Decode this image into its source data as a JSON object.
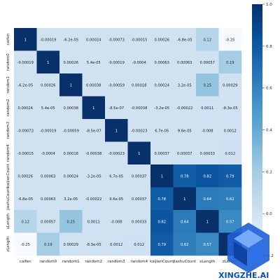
{
  "chart_data": {
    "type": "heatmap",
    "title": "",
    "labels": [
      "caifen",
      "random0",
      "random1",
      "random2",
      "random3",
      "random4",
      "kaijianCount",
      "jiashuCount",
      "xLength",
      "zLength"
    ],
    "cell_text": [
      [
        "1",
        "-0.00019",
        "-6.2e-05",
        "0.00024",
        "-0.00073",
        "-0.00015",
        "0.00026",
        "-6.8e-05",
        "0.12",
        "-0.25"
      ],
      [
        "-0.00019",
        "1",
        "0.00026",
        "5.4e-05",
        "-0.00019",
        "-0.0004",
        "0.00063",
        "0.00063",
        "0.00057",
        "0.19"
      ],
      [
        "-6.2e-05",
        "0.00026",
        "1",
        "0.00038",
        "-0.00059",
        "0.00018",
        "0.00024",
        "3.2e-05",
        "0.25",
        "0.00029"
      ],
      [
        "0.00024",
        "5.4e-05",
        "0.00038",
        "1",
        "-8.5e-07",
        "-0.00038",
        "-3.2e-05",
        "-0.00022",
        "0.0011",
        "-8.3e-05"
      ],
      [
        "-0.00073",
        "-0.00019",
        "-0.00059",
        "-8.5e-07",
        "1",
        "-0.00023",
        "6.7e-05",
        "9.6e-05",
        "-0.008",
        "0.0012"
      ],
      [
        "-0.00015",
        "-0.0004",
        "0.00018",
        "-0.00038",
        "-0.00023",
        "1",
        "0.00037",
        "0.00037",
        "0.00033",
        "0.012"
      ],
      [
        "0.00026",
        "0.00063",
        "0.00024",
        "-3.2e-05",
        "6.7e-05",
        "0.00037",
        "1",
        "0.78",
        "0.82",
        "0.79"
      ],
      [
        "-6.8e-05",
        "0.00063",
        "3.2e-05",
        "-0.00022",
        "9.6e-05",
        "0.00037",
        "0.78",
        "1",
        "0.64",
        "0.62"
      ],
      [
        "0.12",
        "0.00057",
        "0.25",
        "0.0011",
        "-0.008",
        "0.00033",
        "0.82",
        "0.64",
        "1",
        "0.57"
      ],
      [
        "-0.25",
        "0.19",
        "0.00029",
        "-8.3e-05",
        "0.0012",
        "0.012",
        "0.79",
        "0.62",
        "0.57",
        "1"
      ]
    ],
    "colorbar": {
      "min": -0.25,
      "max": 1.0,
      "ticks": [
        "1.0",
        "0.8",
        "0.6",
        "0.4",
        "0.2",
        "0.0",
        "-0.2"
      ],
      "tick_values": [
        1.0,
        0.8,
        0.6,
        0.4,
        0.2,
        0.0,
        -0.2
      ]
    },
    "colormap": [
      "#f7fbff",
      "#deebf7",
      "#c6dbef",
      "#9ecae1",
      "#6baed6",
      "#4292c6",
      "#2171b5",
      "#08519c",
      "#08306b"
    ]
  },
  "watermark": {
    "text": "XINGZHE.AI"
  }
}
